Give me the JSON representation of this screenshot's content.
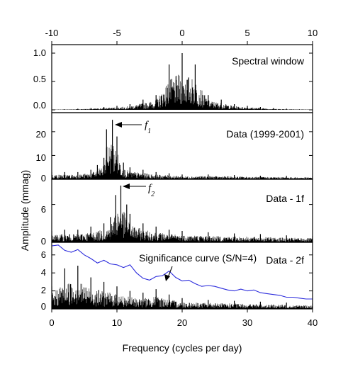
{
  "chart_data": {
    "type": "line",
    "xlabel": "Frequency (cycles per day)",
    "ylabel": "Amplitude (mmag)",
    "xlim": [
      0,
      40
    ],
    "x_ticks": [
      "0",
      "10",
      "20",
      "30",
      "40"
    ],
    "top_axis": {
      "xlim": [
        -10,
        10
      ],
      "ticks": [
        "-10",
        "-5",
        "0",
        "5",
        "10"
      ]
    },
    "panels": [
      {
        "label": "Spectral window",
        "x_axis": "top",
        "ylim": [
          -0.05,
          1.15
        ],
        "y_ticks": [
          "0.0",
          "0.5",
          "1.0"
        ],
        "series": [
          {
            "kind": "spikes",
            "x": [
              -10,
              -9,
              -8,
              -7,
              -6,
              -5,
              -4,
              -3,
              -2,
              -1,
              0,
              1,
              2,
              3,
              4,
              5,
              6,
              7,
              8,
              9,
              10
            ],
            "y": [
              0.01,
              0.01,
              0.02,
              0.03,
              0.05,
              0.07,
              0.1,
              0.18,
              0.26,
              0.8,
              1.0,
              0.8,
              0.26,
              0.18,
              0.1,
              0.07,
              0.05,
              0.03,
              0.02,
              0.01,
              0.01
            ]
          }
        ]
      },
      {
        "label": "Data (1999-2001)",
        "annotation": "f",
        "annotation_sub": "1",
        "ylim": [
          0,
          28
        ],
        "y_ticks": [
          "0",
          "10",
          "20"
        ],
        "series": [
          {
            "kind": "spikes",
            "x": [
              0,
              2,
              4,
              6,
              7,
              8,
              8.4,
              9.3,
              10,
              11,
              12,
              14,
              16,
              18,
              20,
              24,
              28,
              32,
              36,
              40
            ],
            "y": [
              3,
              3,
              3,
              4,
              6,
              9,
              21,
              25,
              18,
              7,
              5,
              4,
              3,
              2.5,
              2,
              2,
              1.8,
              1.5,
              1.4,
              1.2
            ]
          }
        ]
      },
      {
        "label": "Data - 1f",
        "annotation": "f",
        "annotation_sub": "2",
        "ylim": [
          0,
          10
        ],
        "y_ticks": [
          "0",
          "6"
        ],
        "series": [
          {
            "kind": "spikes",
            "x": [
              0,
              2,
              4,
              6,
              8,
              9,
              9.8,
              10.6,
              11.5,
              12,
              14,
              16,
              18,
              20,
              24,
              28,
              32,
              36,
              40
            ],
            "y": [
              1.8,
              2,
              2,
              2.5,
              3,
              4,
              7.5,
              9,
              6,
              4.5,
              3,
              2.5,
              2,
              1.8,
              1.6,
              1.4,
              1.3,
              1.1,
              1
            ]
          }
        ]
      },
      {
        "label": "Data - 2f",
        "annotation": "Significance curve (S/N=4)",
        "ylim": [
          0,
          7.4
        ],
        "y_ticks": [
          "0",
          "2",
          "4",
          "6"
        ],
        "series": [
          {
            "kind": "spikes",
            "x": [
              0,
              2,
              4,
              6,
              8,
              10,
              12,
              14,
              16,
              18,
              20,
              24,
              28,
              32,
              36,
              40
            ],
            "y": [
              2.5,
              4.5,
              4.8,
              3.5,
              3,
              2.5,
              2,
              1.8,
              2.2,
              1.6,
              1.2,
              1,
              0.9,
              0.8,
              0.7,
              0.6
            ]
          },
          {
            "kind": "line",
            "color": "#2b2bdc",
            "x": [
              0,
              1,
              2,
              3,
              4,
              5,
              6,
              7,
              8,
              9,
              10,
              11,
              12,
              13,
              14,
              15,
              16,
              17,
              18,
              19,
              20,
              21,
              22,
              23,
              24,
              25,
              26,
              27,
              28,
              29,
              30,
              31,
              32,
              33,
              34,
              35,
              36,
              37,
              38,
              39,
              40
            ],
            "y": [
              7.0,
              7.1,
              6.5,
              6.3,
              6.6,
              6.0,
              5.6,
              5.1,
              5.4,
              5.0,
              4.9,
              4.6,
              4.9,
              4.0,
              3.4,
              3.2,
              3.6,
              3.7,
              4.2,
              3.5,
              3.1,
              3.2,
              2.8,
              2.5,
              2.6,
              2.5,
              2.3,
              2.1,
              2.0,
              2.2,
              2.0,
              2.1,
              1.8,
              1.7,
              1.6,
              1.5,
              1.3,
              1.3,
              1.2,
              1.1,
              1.1
            ]
          }
        ]
      }
    ]
  }
}
